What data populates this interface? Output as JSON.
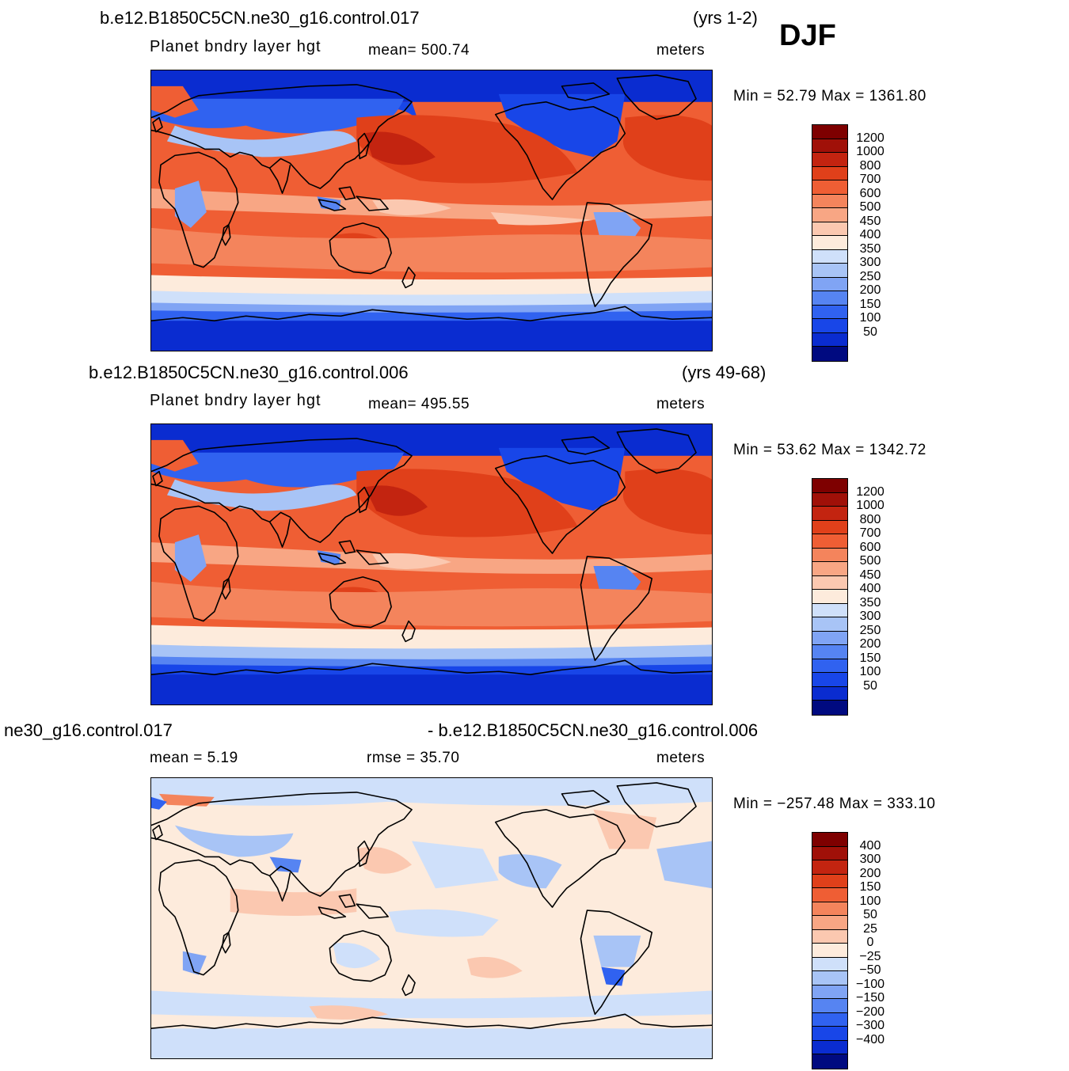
{
  "season": "DJF",
  "colors": {
    "abs_scale": [
      "#000a80",
      "#0018a8",
      "#0a2cd0",
      "#1846e8",
      "#3062f0",
      "#5684f2",
      "#80a4f4",
      "#a8c4f6",
      "#cfe0fa",
      "#fdebdc",
      "#fbc8b0",
      "#f8a684",
      "#f4845c",
      "#ef5e34",
      "#e0401a",
      "#c32410",
      "#a01008",
      "#7e0000"
    ],
    "diff_scale": [
      "#000a80",
      "#0018a8",
      "#0a2cd0",
      "#1846e8",
      "#3062f0",
      "#5684f2",
      "#80a4f4",
      "#a8c4f6",
      "#cfe0fa",
      "#fdebdc",
      "#fbc8b0",
      "#f8a684",
      "#f4845c",
      "#ef5e34",
      "#e0401a",
      "#c32410",
      "#a01008",
      "#7e0000"
    ]
  },
  "panels": [
    {
      "case": "b.e12.B1850C5CN.ne30_g16.control.017",
      "years": "(yrs 1-2)",
      "variable": "Planet  bndry  layer  hgt",
      "mean_text": "mean=  500.74",
      "units": "meters",
      "minmax_text": "Min  =    52.79  Max  =  1361.80",
      "legend_labels": [
        "1200",
        "1000",
        "800",
        "700",
        "600",
        "500",
        "450",
        "400",
        "350",
        "300",
        "250",
        "200",
        "150",
        "100",
        "50"
      ]
    },
    {
      "case": "b.e12.B1850C5CN.ne30_g16.control.006",
      "years": "(yrs 49-68)",
      "variable": "Planet  bndry  layer  hgt",
      "mean_text": "mean=  495.55",
      "units": "meters",
      "minmax_text": "Min  =    53.62  Max  =  1342.72",
      "legend_labels": [
        "1200",
        "1000",
        "800",
        "700",
        "600",
        "500",
        "450",
        "400",
        "350",
        "300",
        "250",
        "200",
        "150",
        "100",
        "50"
      ]
    },
    {
      "case_left": "ne30_g16.control.017",
      "case_right": "- b.e12.B1850C5CN.ne30_g16.control.006",
      "mean_text": "mean  =     5.19",
      "rmse_text": "rmse  =    35.70",
      "units": "meters",
      "minmax_text": "Min  =  −257.48  Max  =  333.10",
      "legend_labels": [
        "400",
        "300",
        "200",
        "150",
        "100",
        "50",
        "25",
        "0",
        "−25",
        "−50",
        "−100",
        "−150",
        "−200",
        "−300",
        "−400"
      ]
    }
  ]
}
